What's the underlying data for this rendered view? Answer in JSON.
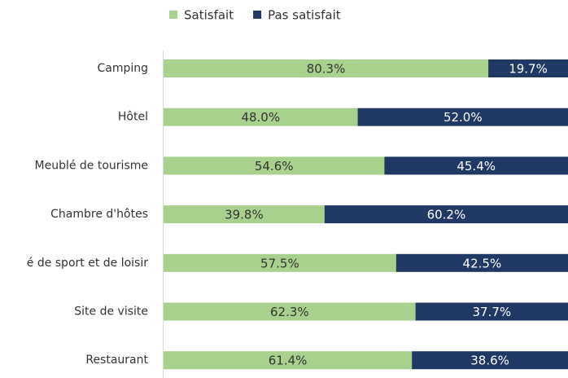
{
  "chart_data": {
    "type": "stacked-bar-horizontal",
    "categories": [
      "Camping",
      "Hôtel",
      "Meublé de tourisme",
      "Chambre d'hôtes",
      "é de sport et de loisir",
      "Site de visite",
      "Restaurant"
    ],
    "series": [
      {
        "name": "Satisfait",
        "color": "#a9d18e",
        "values": [
          80.3,
          48.0,
          54.6,
          39.8,
          57.5,
          62.3,
          61.4
        ],
        "value_labels": [
          "80.3%",
          "48.0%",
          "54.6%",
          "39.8%",
          "57.5%",
          "62.3%",
          "61.4%"
        ]
      },
      {
        "name": "Pas satisfait",
        "color": "#203864",
        "values": [
          19.7,
          52.0,
          45.4,
          60.2,
          42.5,
          37.7,
          38.6
        ],
        "value_labels": [
          "19.7%",
          "52.0%",
          "45.4%",
          "60.2%",
          "42.5%",
          "37.7%",
          "38.6%"
        ]
      }
    ],
    "legend": "top"
  }
}
